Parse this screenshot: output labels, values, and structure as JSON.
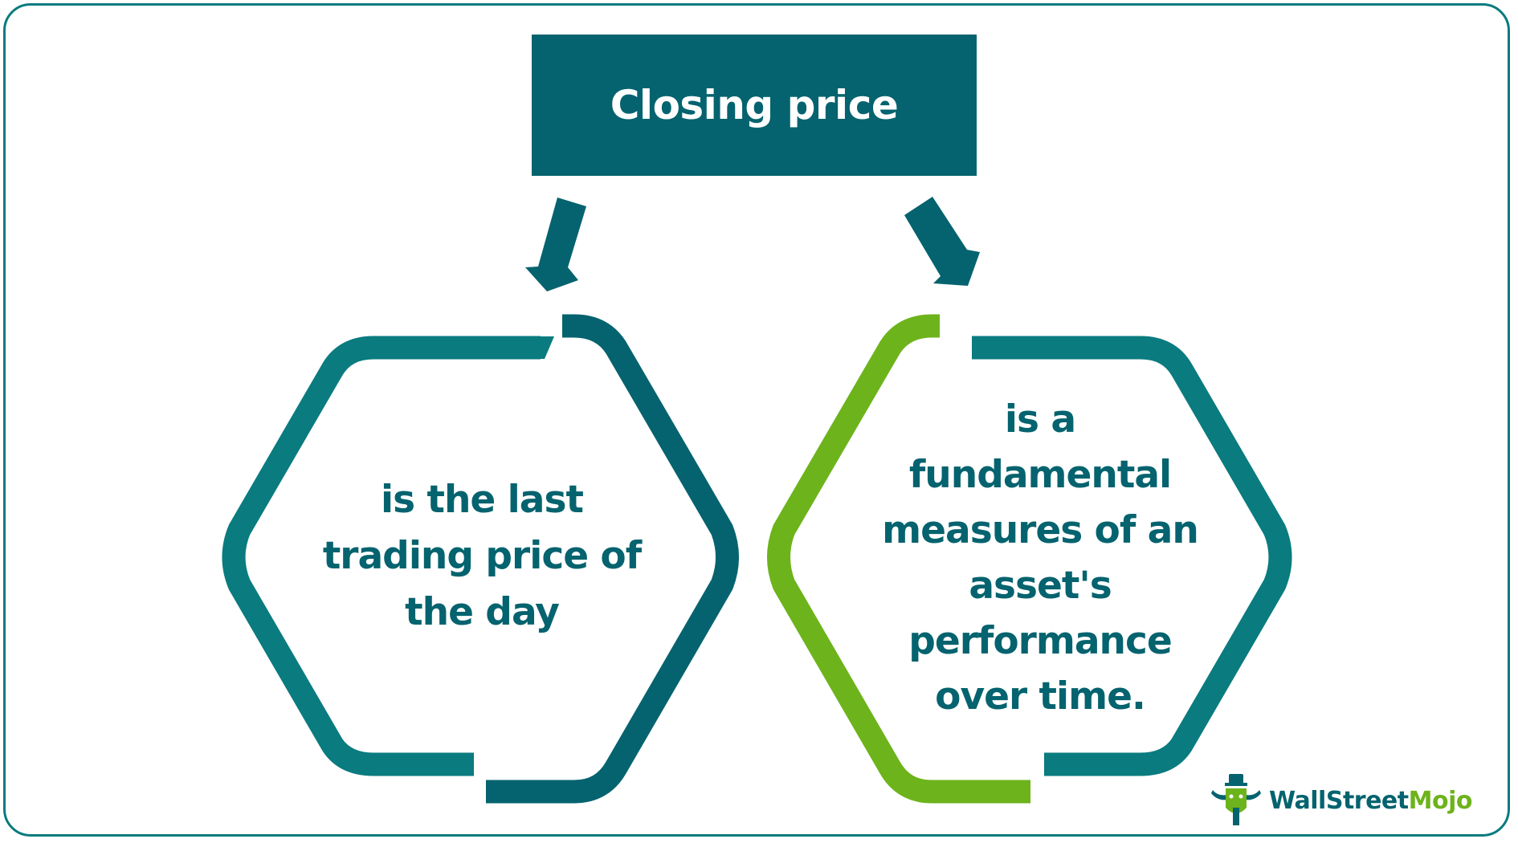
{
  "title": "Closing price",
  "left_node": {
    "lines": [
      "is the last",
      "trading price of",
      "the day"
    ]
  },
  "right_node": {
    "lines": [
      "is a",
      "fundamental",
      "measures of an",
      "asset's",
      "performance",
      "over time."
    ]
  },
  "logo": {
    "part1": "WallStreet",
    "part2": "Mojo"
  },
  "colors": {
    "dark_teal": "#04636e",
    "teal": "#0a7b7f",
    "green": "#6db31b",
    "background": "#ffffff"
  }
}
